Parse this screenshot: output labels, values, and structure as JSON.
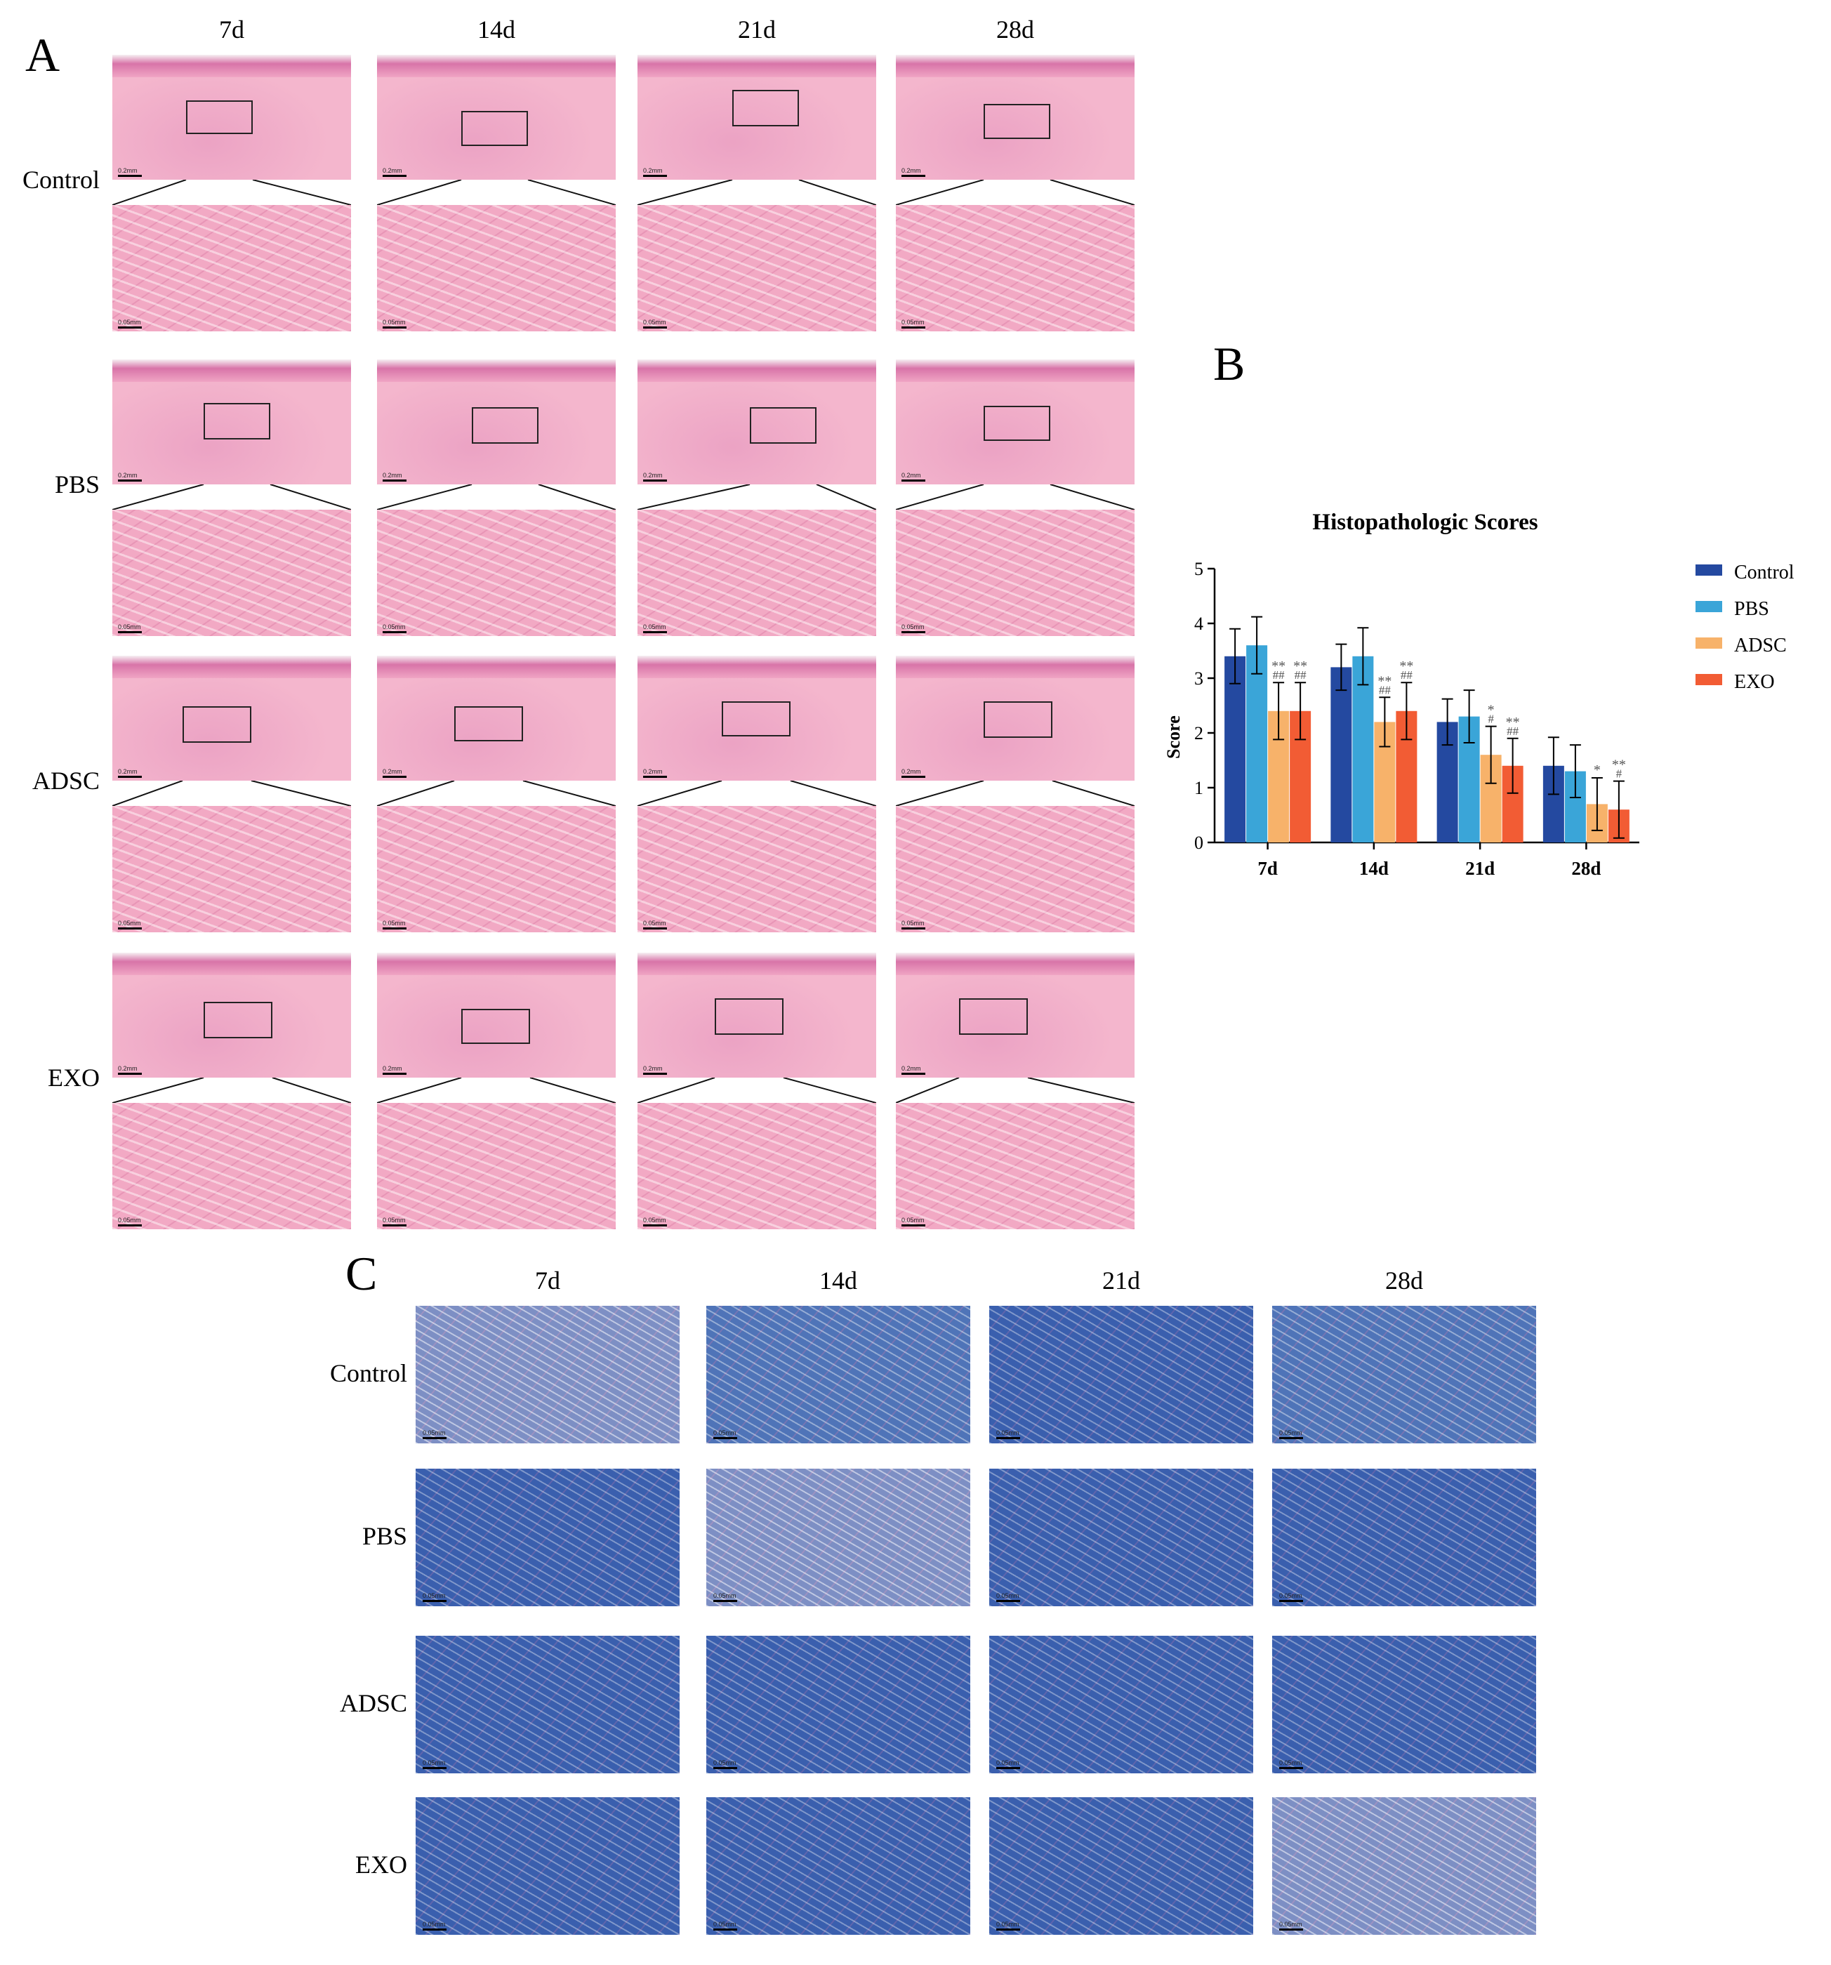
{
  "panel_a": {
    "letter": "A",
    "columns": [
      "7d",
      "14d",
      "21d",
      "28d"
    ],
    "rows": [
      "Control",
      "PBS",
      "ADSC",
      "EXO"
    ],
    "scale_upper": "0.2mm",
    "scale_lower": "0.05mm"
  },
  "panel_b": {
    "letter": "B"
  },
  "panel_c": {
    "letter": "C",
    "columns": [
      "7d",
      "14d",
      "21d",
      "28d"
    ],
    "rows": [
      "Control",
      "PBS",
      "ADSC",
      "EXO"
    ],
    "scale": "0.05mm",
    "tones": [
      [
        "light",
        "mid",
        "",
        "mid"
      ],
      [
        "",
        "light",
        "",
        ""
      ],
      [
        "",
        "",
        "",
        ""
      ],
      [
        "",
        "",
        "",
        "light"
      ]
    ]
  },
  "chart_data": {
    "type": "bar",
    "title": "Histopathologic Scores",
    "ylabel": "Score",
    "xlabel": "",
    "ylim": [
      0,
      5
    ],
    "yticks": [
      0,
      1,
      2,
      3,
      4,
      5
    ],
    "categories": [
      "7d",
      "14d",
      "21d",
      "28d"
    ],
    "legend_position": "right",
    "series": [
      {
        "name": "Control",
        "color": "#2449a0",
        "values": [
          3.4,
          3.2,
          2.2,
          1.4
        ],
        "errors": [
          0.5,
          0.42,
          0.42,
          0.52
        ],
        "annotations": [
          [
            "",
            ""
          ],
          [
            "",
            ""
          ],
          [
            "",
            ""
          ],
          [
            "",
            ""
          ]
        ]
      },
      {
        "name": "PBS",
        "color": "#3aa5d8",
        "values": [
          3.6,
          3.4,
          2.3,
          1.3
        ],
        "errors": [
          0.52,
          0.52,
          0.48,
          0.48
        ],
        "annotations": [
          [
            "",
            ""
          ],
          [
            "",
            ""
          ],
          [
            "",
            ""
          ],
          [
            "",
            ""
          ]
        ]
      },
      {
        "name": "ADSC",
        "color": "#f7b26a",
        "values": [
          2.4,
          2.2,
          1.6,
          0.7
        ],
        "errors": [
          0.52,
          0.45,
          0.52,
          0.48
        ],
        "annotations": [
          [
            "**",
            "##"
          ],
          [
            "**",
            "##"
          ],
          [
            "*",
            "#"
          ],
          [
            "*",
            ""
          ]
        ]
      },
      {
        "name": "EXO",
        "color": "#f25c34",
        "values": [
          2.4,
          2.4,
          1.4,
          0.6
        ],
        "errors": [
          0.52,
          0.52,
          0.5,
          0.52
        ],
        "annotations": [
          [
            "**",
            "##"
          ],
          [
            "**",
            "##"
          ],
          [
            "**",
            "##"
          ],
          [
            "**",
            "#"
          ]
        ]
      }
    ]
  }
}
